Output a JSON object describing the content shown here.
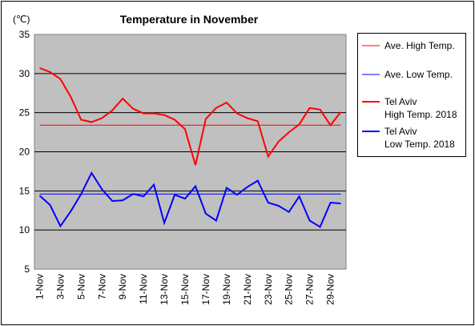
{
  "chart_data": {
    "type": "line",
    "title": "Temperature in November",
    "ylabel": "(℃)",
    "xlabel": "",
    "ylim": [
      5,
      35
    ],
    "yticks": [
      5,
      10,
      15,
      20,
      25,
      30,
      35
    ],
    "grid": true,
    "legend_position": "right",
    "x": [
      "1-Nov",
      "2-Nov",
      "3-Nov",
      "4-Nov",
      "5-Nov",
      "6-Nov",
      "7-Nov",
      "8-Nov",
      "9-Nov",
      "10-Nov",
      "11-Nov",
      "12-Nov",
      "13-Nov",
      "14-Nov",
      "15-Nov",
      "16-Nov",
      "17-Nov",
      "18-Nov",
      "19-Nov",
      "20-Nov",
      "21-Nov",
      "22-Nov",
      "23-Nov",
      "24-Nov",
      "25-Nov",
      "26-Nov",
      "27-Nov",
      "28-Nov",
      "29-Nov",
      "30-Nov"
    ],
    "x_tick_labels": [
      "1-Nov",
      "3-Nov",
      "5-Nov",
      "7-Nov",
      "9-Nov",
      "11-Nov",
      "13-Nov",
      "15-Nov",
      "17-Nov",
      "19-Nov",
      "21-Nov",
      "23-Nov",
      "25-Nov",
      "27-Nov",
      "29-Nov"
    ],
    "series": [
      {
        "name": "Ave. High Temp.",
        "color": "#ff0000",
        "constant": 23.4
      },
      {
        "name": "Ave. Low Temp.",
        "color": "#0000ff",
        "constant": 14.6
      },
      {
        "name": "Tel Aviv High Temp. 2018",
        "legend_lines": [
          "Tel Aviv",
          "High Temp. 2018"
        ],
        "color": "#ff0000",
        "values": [
          30.7,
          30.2,
          29.3,
          27.0,
          24.1,
          23.8,
          24.3,
          25.3,
          26.8,
          25.5,
          24.9,
          24.9,
          24.7,
          24.1,
          22.9,
          18.3,
          24.2,
          25.6,
          26.3,
          24.9,
          24.3,
          23.9,
          19.4,
          21.3,
          22.5,
          23.5,
          25.6,
          25.4,
          23.4,
          25.1
        ]
      },
      {
        "name": "Tel Aviv Low Temp. 2018",
        "legend_lines": [
          "Tel Aviv",
          "Low Temp. 2018"
        ],
        "color": "#0000ff",
        "values": [
          14.4,
          13.2,
          10.5,
          12.4,
          14.6,
          17.3,
          15.2,
          13.7,
          13.8,
          14.6,
          14.3,
          15.8,
          10.9,
          14.5,
          14.0,
          15.6,
          12.1,
          11.2,
          15.4,
          14.5,
          15.5,
          16.3,
          13.5,
          13.1,
          12.3,
          14.3,
          11.2,
          10.4,
          13.5,
          13.4
        ]
      }
    ]
  }
}
